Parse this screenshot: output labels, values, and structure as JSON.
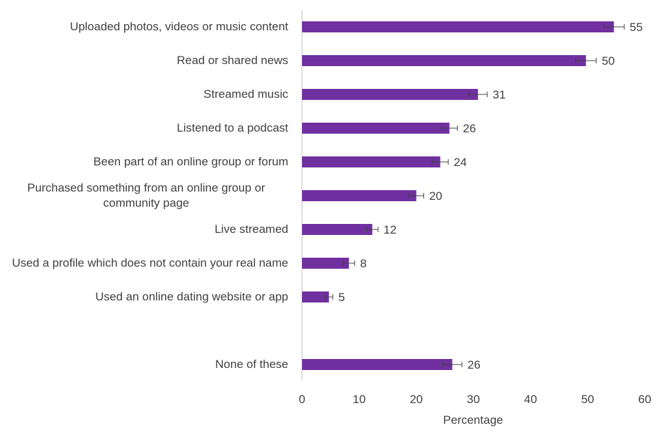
{
  "chart_data": {
    "type": "bar",
    "orientation": "horizontal",
    "title": "",
    "xlabel": "Percentage",
    "ylabel": "",
    "xlim": [
      0,
      60
    ],
    "xticks": [
      0,
      10,
      20,
      30,
      40,
      50,
      60
    ],
    "grid": false,
    "bar_color": "#7030A0",
    "errorbar_color": "#404040",
    "categories": [
      "Uploaded photos, videos or music content",
      "Read or shared news",
      "Streamed music",
      "Listened to a podcast",
      "Been part of an online group or forum",
      "Purchased something from an online group or community page",
      "Live streamed",
      "Used a profile which does not contain your real name",
      "Used an online dating website or app",
      "",
      "None of these"
    ],
    "values": [
      54.6,
      49.7,
      30.8,
      25.8,
      24.2,
      20.0,
      12.3,
      8.2,
      4.7,
      null,
      26.3
    ],
    "data_labels": [
      "55",
      "50",
      "31",
      "26",
      "24",
      "20",
      "12",
      "8",
      "5",
      "",
      "26"
    ],
    "error": [
      1.8,
      1.8,
      1.6,
      1.4,
      1.4,
      1.3,
      1.0,
      1.0,
      0.7,
      null,
      1.7
    ]
  }
}
